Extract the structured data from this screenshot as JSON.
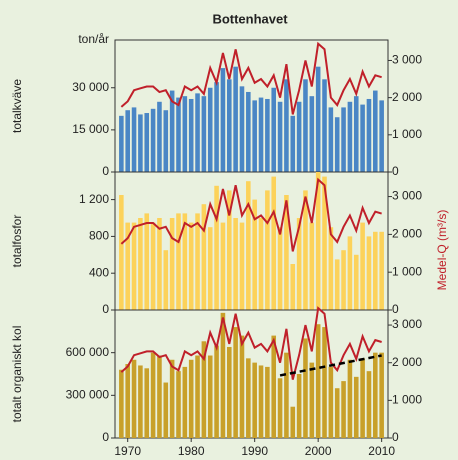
{
  "title": "Bottenhavet",
  "y2_label": "Medel-Q (m³/s)",
  "chart_data": [
    {
      "type": "bar",
      "ylabel": "totalkväve",
      "unit_label": "ton/år",
      "x": [
        1969,
        1970,
        1971,
        1972,
        1973,
        1974,
        1975,
        1976,
        1977,
        1978,
        1979,
        1980,
        1981,
        1982,
        1983,
        1984,
        1985,
        1986,
        1987,
        1988,
        1989,
        1990,
        1991,
        1992,
        1993,
        1994,
        1995,
        1996,
        1997,
        1998,
        1999,
        2000,
        2001,
        2002,
        2003,
        2004,
        2005,
        2006,
        2007,
        2008,
        2009,
        2010
      ],
      "xlim": [
        1968,
        2011
      ],
      "ylim": [
        0,
        47000
      ],
      "yticks": [
        0,
        {
          "value": 15000,
          "label": "15 000"
        },
        {
          "value": 30000,
          "label": "30 000"
        }
      ],
      "y2lim": [
        0,
        3550
      ],
      "y2ticks": [
        0,
        {
          "value": 1000,
          "label": "1 000"
        },
        {
          "value": 2000,
          "label": "2 000"
        },
        {
          "value": 3000,
          "label": "3 000"
        }
      ],
      "series": [
        {
          "color": "#4a86c5",
          "values": [
            20000,
            22000,
            23000,
            20500,
            21000,
            22500,
            25000,
            22000,
            29000,
            26500,
            27000,
            26000,
            28000,
            27000,
            30000,
            32000,
            37000,
            33000,
            37500,
            30500,
            28500,
            25500,
            26500,
            26000,
            30000,
            25000,
            33000,
            20000,
            25000,
            33000,
            27000,
            37500,
            33000,
            23000,
            19500,
            23000,
            25000,
            27000,
            24000,
            26000,
            29000,
            25500
          ]
        },
        {
          "color": "#c0202a",
          "axis": "y2",
          "values": [
            1750,
            1900,
            2200,
            2250,
            2300,
            2300,
            2150,
            2200,
            1900,
            1800,
            2300,
            2200,
            2300,
            2100,
            2800,
            2400,
            3200,
            2500,
            3300,
            2500,
            2800,
            2400,
            2500,
            2300,
            2600,
            2000,
            2900,
            1550,
            2200,
            3000,
            2300,
            3450,
            3300,
            2000,
            1800,
            2200,
            2500,
            2100,
            2700,
            2300,
            2600,
            2550
          ]
        }
      ]
    },
    {
      "type": "bar",
      "ylabel": "totalfosfor",
      "x": [
        1969,
        1970,
        1971,
        1972,
        1973,
        1974,
        1975,
        1976,
        1977,
        1978,
        1979,
        1980,
        1981,
        1982,
        1983,
        1984,
        1985,
        1986,
        1987,
        1988,
        1989,
        1990,
        1991,
        1992,
        1993,
        1994,
        1995,
        1996,
        1997,
        1998,
        1999,
        2000,
        2001,
        2002,
        2003,
        2004,
        2005,
        2006,
        2007,
        2008,
        2009,
        2010
      ],
      "xlim": [
        1968,
        2011
      ],
      "ylim": [
        0,
        1500
      ],
      "yticks": [
        0,
        400,
        800,
        {
          "value": 1200,
          "label": "1 200"
        }
      ],
      "y2lim": [
        0,
        3650
      ],
      "y2ticks": [
        0,
        {
          "value": 1000,
          "label": "1 000"
        },
        {
          "value": 2000,
          "label": "2 000"
        },
        {
          "value": 3000,
          "label": "3 000"
        }
      ],
      "series": [
        {
          "color": "#fcd25a",
          "values": [
            1250,
            950,
            950,
            1000,
            1050,
            950,
            1000,
            650,
            1000,
            1050,
            1050,
            950,
            1050,
            1150,
            900,
            1350,
            950,
            1300,
            1000,
            950,
            1400,
            1200,
            1000,
            1300,
            1450,
            900,
            1250,
            500,
            1000,
            1300,
            950,
            1500,
            1450,
            900,
            550,
            650,
            800,
            600,
            950,
            800,
            850,
            850
          ]
        },
        {
          "color": "#c0202a",
          "axis": "y2",
          "values": [
            1750,
            1900,
            2200,
            2250,
            2300,
            2300,
            2150,
            2200,
            1900,
            1800,
            2300,
            2200,
            2300,
            2100,
            2800,
            2400,
            3200,
            2500,
            3300,
            2500,
            2800,
            2400,
            2500,
            2300,
            2600,
            2000,
            2900,
            1550,
            2200,
            3000,
            2300,
            3450,
            3300,
            2000,
            1800,
            2200,
            2500,
            2100,
            2700,
            2300,
            2600,
            2550
          ]
        }
      ]
    },
    {
      "type": "bar",
      "ylabel": "totalt organiskt kol",
      "x": [
        1969,
        1970,
        1971,
        1972,
        1973,
        1974,
        1975,
        1976,
        1977,
        1978,
        1979,
        1980,
        1981,
        1982,
        1983,
        1984,
        1985,
        1986,
        1987,
        1988,
        1989,
        1990,
        1991,
        1992,
        1993,
        1994,
        1995,
        1996,
        1997,
        1998,
        1999,
        2000,
        2001,
        2002,
        2003,
        2004,
        2005,
        2006,
        2007,
        2008,
        2009,
        2010
      ],
      "xlim": [
        1968,
        2011
      ],
      "xticks": [
        1970,
        1980,
        1990,
        2000,
        2010
      ],
      "ylim": [
        0,
        900000
      ],
      "yticks": [
        0,
        {
          "value": 300000,
          "label": "300 000"
        },
        {
          "value": 600000,
          "label": "600 000"
        }
      ],
      "y2lim": [
        0,
        3400
      ],
      "y2ticks": [
        0,
        {
          "value": 1000,
          "label": "1 000"
        },
        {
          "value": 2000,
          "label": "2 000"
        },
        {
          "value": 3000,
          "label": "3 000"
        }
      ],
      "series": [
        {
          "color": "#c8a02a",
          "values": [
            480000,
            520000,
            550000,
            510000,
            490000,
            600000,
            580000,
            390000,
            550000,
            470000,
            500000,
            550000,
            580000,
            680000,
            580000,
            650000,
            880000,
            640000,
            780000,
            720000,
            560000,
            530000,
            510000,
            500000,
            720000,
            420000,
            600000,
            220000,
            450000,
            700000,
            530000,
            800000,
            780000,
            500000,
            350000,
            400000,
            550000,
            430000,
            560000,
            470000,
            600000,
            600000
          ]
        },
        {
          "color": "#c0202a",
          "axis": "y2",
          "values": [
            1750,
            1900,
            2200,
            2250,
            2300,
            2300,
            2150,
            2200,
            1900,
            1800,
            2300,
            2200,
            2300,
            2100,
            2800,
            2400,
            3200,
            2500,
            3300,
            2500,
            2800,
            2400,
            2500,
            2300,
            2600,
            2000,
            2900,
            1550,
            2200,
            3000,
            2300,
            3450,
            3300,
            2000,
            1800,
            2200,
            2500,
            2100,
            2700,
            2300,
            2600,
            2550
          ]
        }
      ],
      "trend": {
        "color": "#000000",
        "x": [
          1994,
          2010
        ],
        "values": [
          440000,
          580000
        ]
      }
    }
  ]
}
